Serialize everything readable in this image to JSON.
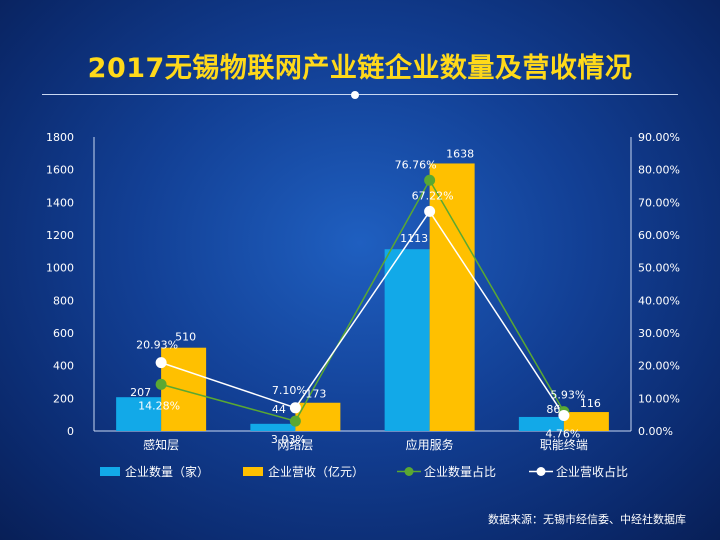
{
  "title": "2017无锡物联网产业链企业数量及营收情况",
  "source": "数据来源：无锡市经信委、中经社数据库",
  "colors": {
    "count_bar": "#12a9e8",
    "revenue_bar": "#ffc000",
    "count_share_line": "#5aa832",
    "revenue_share_line": "#ffffff",
    "title": "#ffd91a"
  },
  "chart_data": {
    "type": "bar",
    "title": "2017无锡物联网产业链企业数量及营收情况",
    "categories": [
      "感知层",
      "网络层",
      "应用服务",
      "职能终端"
    ],
    "ylim": [
      0,
      1800
    ],
    "y2lim": [
      0,
      90
    ],
    "yticks": [
      "0",
      "200",
      "400",
      "600",
      "800",
      "1000",
      "1200",
      "1400",
      "1600",
      "1800"
    ],
    "y2ticks": [
      "0.00%",
      "10.00%",
      "20.00%",
      "30.00%",
      "40.00%",
      "50.00%",
      "60.00%",
      "70.00%",
      "80.00%",
      "90.00%"
    ],
    "grid": false,
    "legend_position": "bottom",
    "series": [
      {
        "name": "企业数量（家）",
        "type": "bar",
        "axis": "left",
        "values": [
          207,
          44,
          1113,
          86
        ],
        "labels": [
          "207",
          "44",
          "1113",
          "86"
        ]
      },
      {
        "name": "企业营收（亿元）",
        "type": "bar",
        "axis": "left",
        "values": [
          510,
          173,
          1638,
          116
        ],
        "labels": [
          "510",
          "173",
          "1638",
          "116"
        ]
      },
      {
        "name": "企业数量占比",
        "type": "line",
        "axis": "right",
        "values": [
          14.28,
          3.03,
          76.76,
          5.93
        ],
        "labels": [
          "14.28%",
          "3.03%",
          "76.76%",
          "5.93%"
        ]
      },
      {
        "name": "企业营收占比",
        "type": "line",
        "axis": "right",
        "values": [
          20.93,
          7.1,
          67.22,
          4.76
        ],
        "labels": [
          "20.93%",
          "7.10%",
          "67.22%",
          "4.76%"
        ]
      }
    ]
  }
}
